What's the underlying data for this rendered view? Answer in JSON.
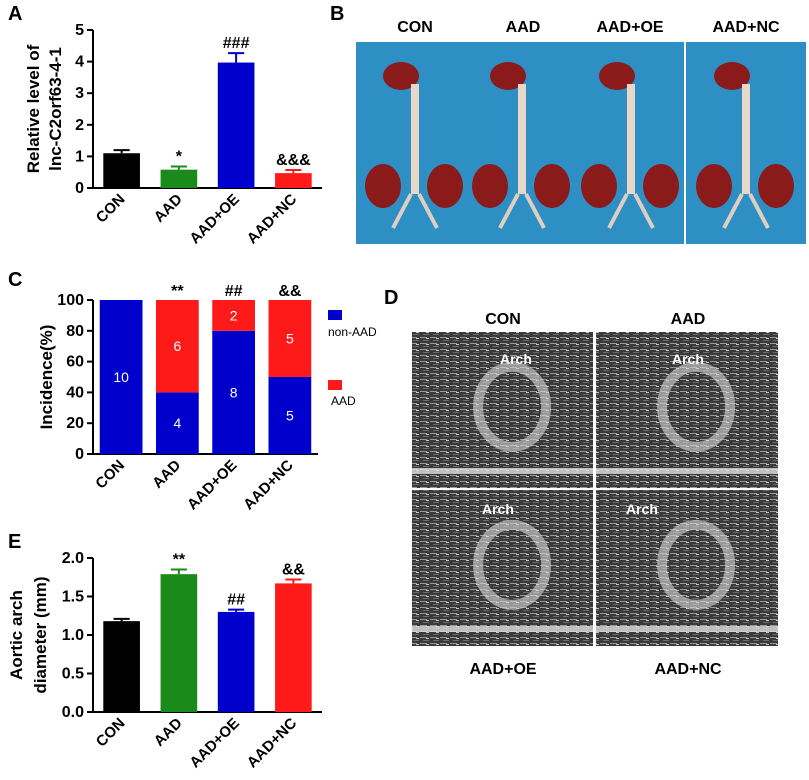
{
  "panels": {
    "A": "A",
    "B": "B",
    "C": "C",
    "D": "D",
    "E": "E"
  },
  "colors": {
    "con": "#000000",
    "aad_green": "#1a8a1a",
    "oe": "#0000cc",
    "nc": "#ff1a1a",
    "blue": "#0000cc",
    "red": "#ff1a1a",
    "tissue_bg": "#2e8fc4",
    "organ": "#8b1a1a"
  },
  "photos": {
    "labels": [
      "CON",
      "AAD",
      "AAD+OE",
      "AAD+NC"
    ]
  },
  "ultrasound": {
    "top_labels": [
      "CON",
      "AAD"
    ],
    "bottom_labels": [
      "AAD+OE",
      "AAD+NC"
    ],
    "arch_label": "Arch"
  },
  "chart_data": [
    {
      "panel": "A",
      "type": "bar",
      "ylabel_line1": "Relative level of",
      "ylabel_line2": "lnc-C2orf63-4-1",
      "categories": [
        "CON",
        "AAD",
        "AAD+OE",
        "AAD+NC"
      ],
      "values": [
        1.1,
        0.58,
        3.97,
        0.47
      ],
      "errors": [
        0.1,
        0.1,
        0.3,
        0.1
      ],
      "colors": [
        "#000000",
        "#1a8a1a",
        "#0000cc",
        "#ff1a1a"
      ],
      "significance": [
        "",
        "*",
        "###",
        "&&&"
      ],
      "ylim": [
        0,
        5
      ],
      "yticks": [
        0,
        1,
        2,
        3,
        4,
        5
      ]
    },
    {
      "panel": "C",
      "type": "bar",
      "stacked": true,
      "ylabel": "Incidence(%)",
      "categories": [
        "CON",
        "AAD",
        "AAD+OE",
        "AAD+NC"
      ],
      "series": [
        {
          "name": "non-AAD",
          "values": [
            100,
            40,
            80,
            50
          ],
          "counts": [
            "10",
            "4",
            "8",
            "5"
          ],
          "color": "#0000cc"
        },
        {
          "name": "AAD",
          "values": [
            0,
            60,
            20,
            50
          ],
          "counts": [
            "",
            "6",
            "2",
            "5"
          ],
          "color": "#ff1a1a"
        }
      ],
      "significance": [
        "",
        "**",
        "##",
        "&&"
      ],
      "ylim": [
        0,
        100
      ],
      "yticks": [
        0,
        20,
        40,
        60,
        80,
        100
      ],
      "legend": "right"
    },
    {
      "panel": "E",
      "type": "bar",
      "ylabel_line1": "Aortic arch",
      "ylabel_line2": "diameter (mm)",
      "categories": [
        "CON",
        "AAD",
        "AAD+OE",
        "AAD+NC"
      ],
      "values": [
        1.18,
        1.79,
        1.3,
        1.67
      ],
      "errors": [
        0.03,
        0.06,
        0.03,
        0.05
      ],
      "colors": [
        "#000000",
        "#1a8a1a",
        "#0000cc",
        "#ff1a1a"
      ],
      "significance": [
        "",
        "**",
        "##",
        "&&"
      ],
      "ylim": [
        0,
        2.0
      ],
      "yticks": [
        "0.0",
        "0.5",
        "1.0",
        "1.5",
        "2.0"
      ]
    }
  ]
}
